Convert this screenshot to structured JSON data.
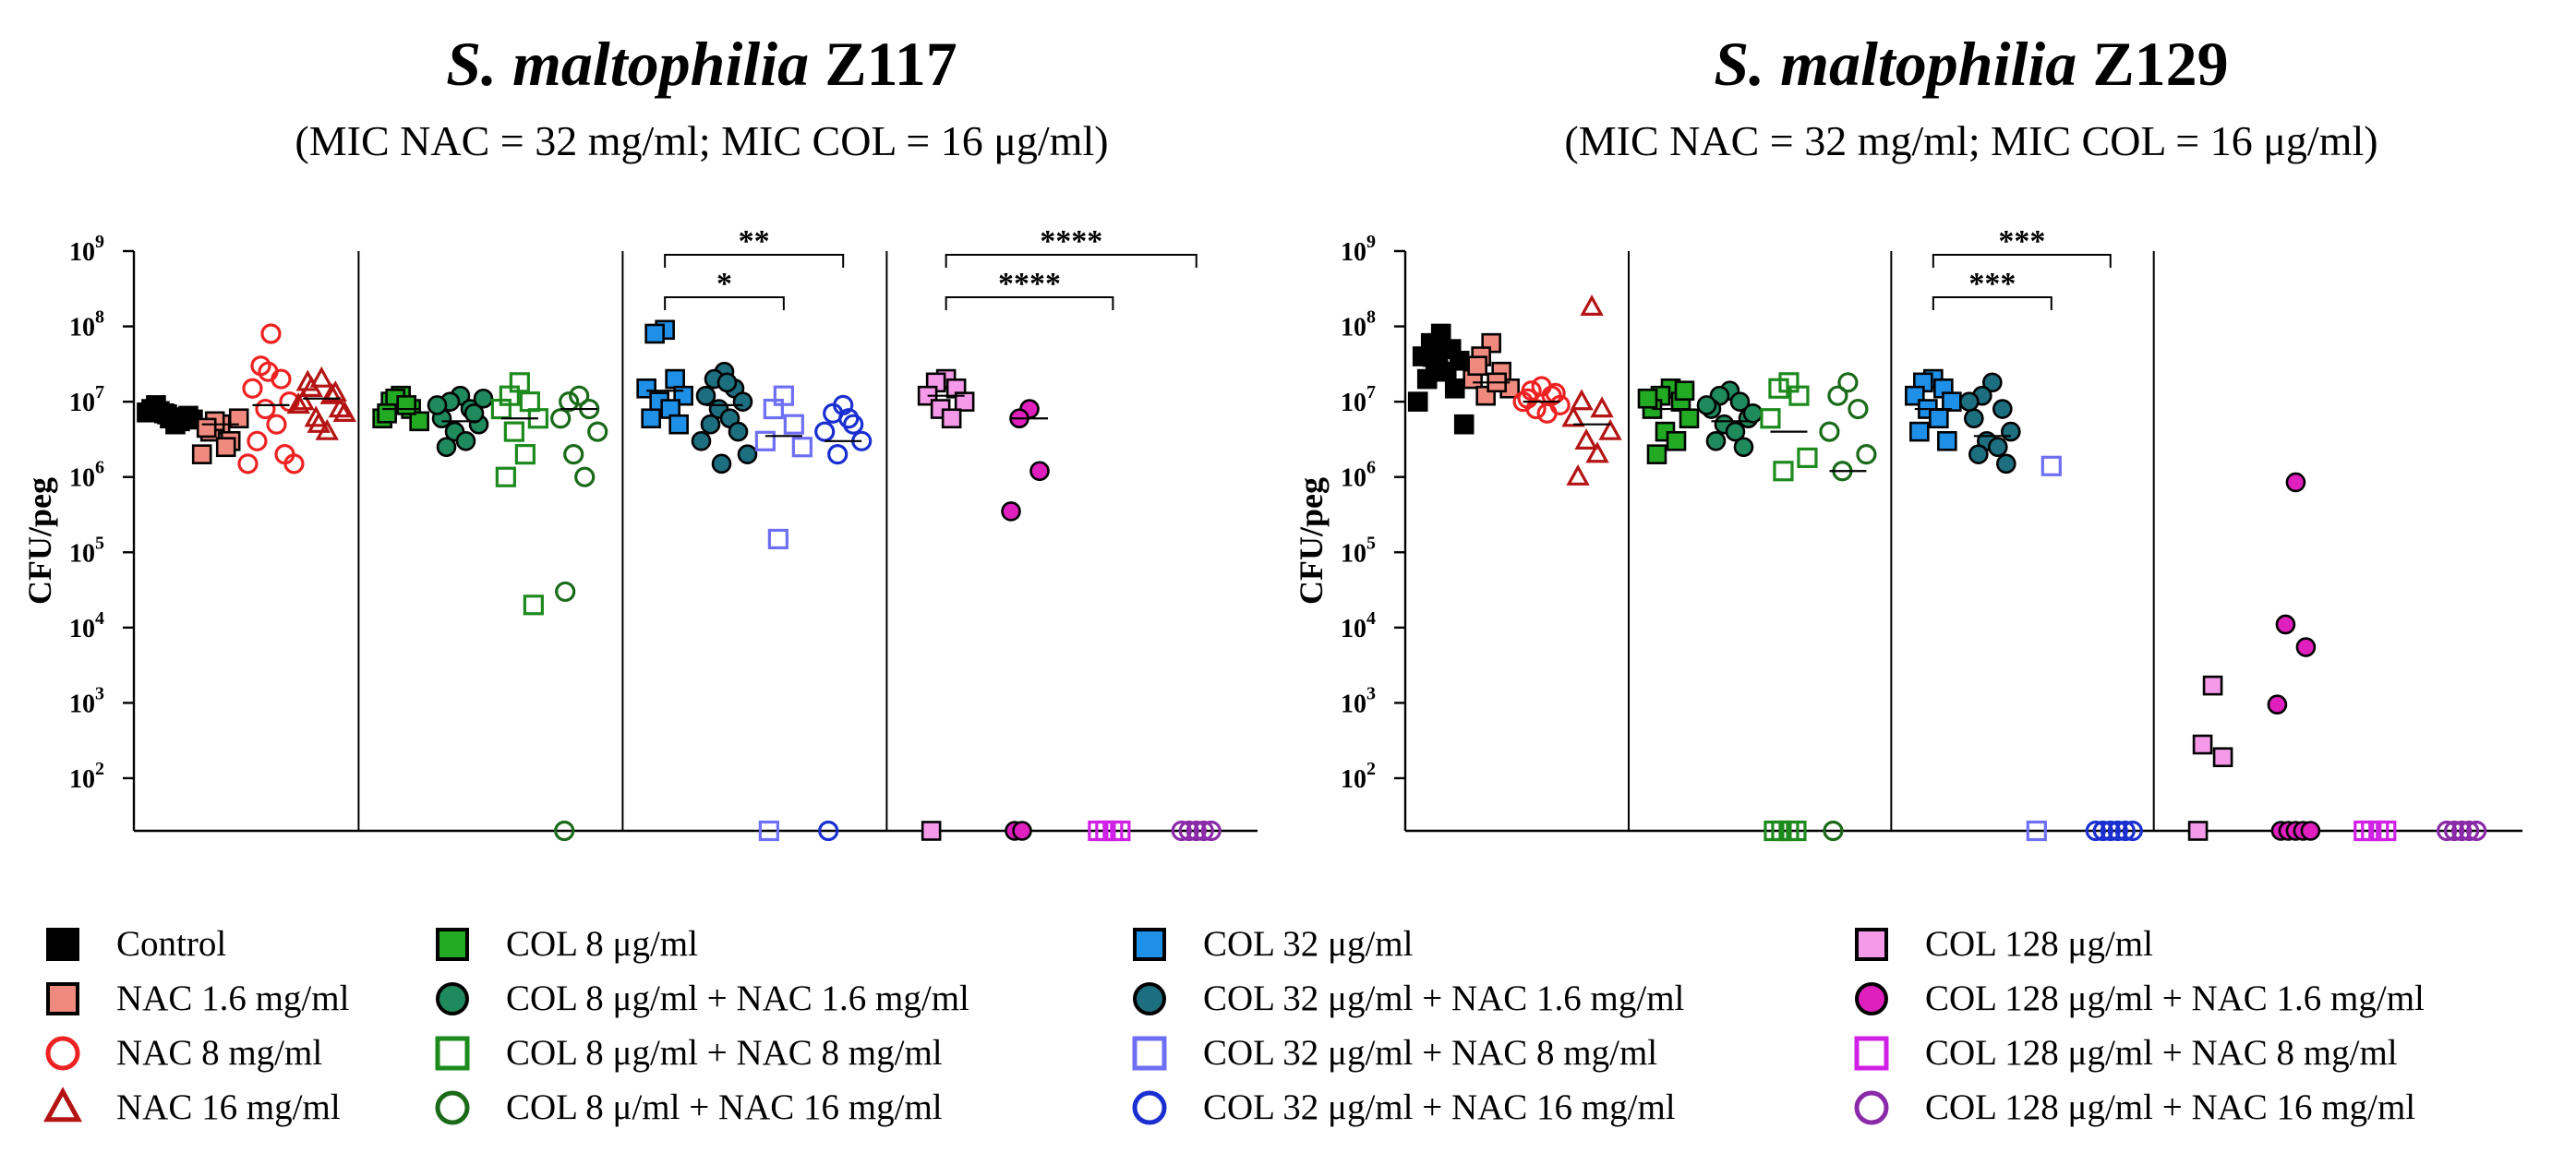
{
  "chart_data": [
    {
      "type": "scatter",
      "title_italic": "S. maltophilia",
      "title_bold": "Z117",
      "subtitle": "(MIC NAC = 32 mg/ml; MIC COL = 16 μg/ml)",
      "ylabel": "CFU/peg",
      "yscale": "log",
      "ylim": [
        20,
        1000000000
      ],
      "yticks": [
        {
          "exp": 2,
          "text": "10",
          "sup": "2"
        },
        {
          "exp": 3,
          "text": "10",
          "sup": "3"
        },
        {
          "exp": 4,
          "text": "10",
          "sup": "4"
        },
        {
          "exp": 5,
          "text": "10",
          "sup": "5"
        },
        {
          "exp": 6,
          "text": "10",
          "sup": "6"
        },
        {
          "exp": 7,
          "text": "10",
          "sup": "7"
        },
        {
          "exp": 8,
          "text": "10",
          "sup": "8"
        },
        {
          "exp": 9,
          "text": "10",
          "sup": "9"
        }
      ],
      "group_separators_after": [
        3,
        7,
        11
      ],
      "series": [
        {
          "name": "Control",
          "values": [
            6000000,
            7500000,
            5500000,
            8000000,
            6500000,
            7000000,
            5000000,
            9000000,
            6200000,
            7200000,
            5800000,
            6800000
          ],
          "median": 6500000
        },
        {
          "name": "NAC 1.6 mg/ml",
          "values": [
            5000000,
            4000000,
            3000000,
            2000000,
            6000000,
            5500000,
            2500000,
            4500000
          ],
          "median": 5000000
        },
        {
          "name": "NAC 8 mg/ml",
          "values": [
            80000000,
            30000000,
            20000000,
            15000000,
            10000000,
            8000000,
            5000000,
            3000000,
            2000000,
            1500000,
            1500000,
            25000000
          ],
          "median": 9000000
        },
        {
          "name": "NAC 16 mg/ml",
          "values": [
            20000000,
            15000000,
            12000000,
            10000000,
            8000000,
            6000000,
            4000000,
            18000000,
            13000000,
            9000000,
            7000000,
            5000000
          ],
          "median": 11000000
        },
        {
          "name": "COL 8 μg/ml",
          "values": [
            12000000,
            10000000,
            8000000,
            6000000,
            5500000,
            11000000,
            9000000,
            7000000
          ],
          "median": 8000000
        },
        {
          "name": "COL 8 μg/ml + NAC 1.6 mg/ml",
          "values": [
            12000000,
            10000000,
            8000000,
            6000000,
            5000000,
            4000000,
            3000000,
            2500000,
            7000000,
            9000000,
            11000000
          ],
          "median": 5500000
        },
        {
          "name": "COL 8 μg/ml + NAC 8 mg/ml",
          "values": [
            18000000,
            12000000,
            10000000,
            8000000,
            6000000,
            4000000,
            2000000,
            1000000,
            20000
          ],
          "median": 6000000
        },
        {
          "name": "COL 8 μ/ml + NAC 16 mg/ml",
          "values": [
            12000000,
            10000000,
            8000000,
            6000000,
            4000000,
            2000000,
            1000000,
            30000,
            20
          ],
          "median": 8000000
        },
        {
          "name": "COL 32 μg/ml",
          "values": [
            90000000,
            80000000,
            20000000,
            15000000,
            12000000,
            10000000,
            8000000,
            6000000,
            5000000
          ],
          "median": 14000000
        },
        {
          "name": "COL 32 μg/ml + NAC 1.6 mg/ml",
          "values": [
            25000000,
            20000000,
            15000000,
            12000000,
            10000000,
            8000000,
            6000000,
            5000000,
            4000000,
            3000000,
            2000000,
            1500000,
            18000000
          ],
          "median": 9000000
        },
        {
          "name": "COL 32 μg/ml + NAC 8 mg/ml",
          "values": [
            12000000,
            8000000,
            5000000,
            3000000,
            2500000,
            150000,
            20
          ],
          "median": 3500000
        },
        {
          "name": "COL 32 μg/ml + NAC 16 mg/ml",
          "values": [
            9000000,
            7000000,
            5000000,
            4000000,
            3000000,
            2000000,
            6000000,
            20
          ],
          "median": 3000000
        },
        {
          "name": "COL 128 μg/ml",
          "values": [
            20000000,
            18000000,
            15000000,
            12000000,
            10000000,
            8000000,
            6000000,
            20
          ],
          "median": 12000000
        },
        {
          "name": "COL 128 μg/ml + NAC 1.6 mg/ml",
          "values": [
            8000000,
            6000000,
            1200000,
            350000,
            20,
            20
          ],
          "median": 6000000
        },
        {
          "name": "COL 128 μg/ml + NAC 8 mg/ml",
          "values": [
            20,
            20,
            20,
            20
          ],
          "median": null
        },
        {
          "name": "COL 128 μg/ml + NAC 16 mg/ml",
          "values": [
            20,
            20,
            20,
            20,
            20
          ],
          "median": null
        }
      ],
      "significance": [
        {
          "from": 8,
          "to": 10,
          "label": "*",
          "level": 1
        },
        {
          "from": 8,
          "to": 11,
          "label": "**",
          "level": 2
        },
        {
          "from": 12,
          "to": 14,
          "label": "****",
          "level": 1
        },
        {
          "from": 12,
          "to": 15,
          "label": "****",
          "level": 2
        }
      ]
    },
    {
      "type": "scatter",
      "title_italic": "S. maltophilia",
      "title_bold": "Z129",
      "subtitle": "(MIC NAC = 32 mg/ml; MIC COL = 16 μg/ml)",
      "ylabel": "CFU/peg",
      "yscale": "log",
      "ylim": [
        20,
        1000000000
      ],
      "yticks": [
        {
          "exp": 2,
          "text": "10",
          "sup": "2"
        },
        {
          "exp": 3,
          "text": "10",
          "sup": "3"
        },
        {
          "exp": 4,
          "text": "10",
          "sup": "4"
        },
        {
          "exp": 5,
          "text": "10",
          "sup": "5"
        },
        {
          "exp": 6,
          "text": "10",
          "sup": "6"
        },
        {
          "exp": 7,
          "text": "10",
          "sup": "7"
        },
        {
          "exp": 8,
          "text": "10",
          "sup": "8"
        },
        {
          "exp": 9,
          "text": "10",
          "sup": "9"
        }
      ],
      "group_separators_after": [
        3,
        7,
        11
      ],
      "series": [
        {
          "name": "Control",
          "values": [
            80000000,
            60000000,
            50000000,
            40000000,
            35000000,
            30000000,
            25000000,
            20000000,
            15000000,
            10000000,
            5000000,
            45000000
          ],
          "median": 30000000
        },
        {
          "name": "NAC 1.6 mg/ml",
          "values": [
            60000000,
            40000000,
            25000000,
            20000000,
            15000000,
            12000000,
            18000000,
            30000000
          ],
          "median": 18000000
        },
        {
          "name": "NAC 8 mg/ml",
          "values": [
            16000000,
            14000000,
            12000000,
            10000000,
            9000000,
            8000000,
            7000000,
            11000000,
            13000000
          ],
          "median": 10000000
        },
        {
          "name": "NAC 16 mg/ml",
          "values": [
            180000000,
            10000000,
            8000000,
            6000000,
            4000000,
            3000000,
            2000000,
            1000000
          ],
          "median": 5000000
        },
        {
          "name": "COL 8 μg/ml",
          "values": [
            15000000,
            12000000,
            10000000,
            8000000,
            6000000,
            4000000,
            3000000,
            2000000,
            14000000,
            11000000
          ],
          "median": 8000000
        },
        {
          "name": "COL 8 μg/ml + NAC 1.6 mg/ml",
          "values": [
            14000000,
            12000000,
            10000000,
            8000000,
            6000000,
            5000000,
            4000000,
            3000000,
            2500000,
            9000000,
            7000000
          ],
          "median": 5500000
        },
        {
          "name": "COL 8 μg/ml + NAC 8 mg/ml",
          "values": [
            18000000,
            15000000,
            12000000,
            6000000,
            1800000,
            1200000,
            20,
            20,
            20,
            20
          ],
          "median": 4000000
        },
        {
          "name": "COL 8 μ/ml + NAC 16 mg/ml",
          "values": [
            18000000,
            12000000,
            8000000,
            4000000,
            2000000,
            1200000,
            20
          ],
          "median": 1200000
        },
        {
          "name": "COL 32 μg/ml",
          "values": [
            20000000,
            18000000,
            15000000,
            12000000,
            10000000,
            8000000,
            6000000,
            4000000,
            3000000
          ],
          "median": 8000000
        },
        {
          "name": "COL 32 μg/ml + NAC 1.6 mg/ml",
          "values": [
            18000000,
            12000000,
            8000000,
            6000000,
            4000000,
            3000000,
            2500000,
            2000000,
            1500000,
            10000000
          ],
          "median": 3500000
        },
        {
          "name": "COL 32 μg/ml + NAC 8 mg/ml",
          "values": [
            1400000,
            20
          ],
          "median": null
        },
        {
          "name": "COL 32 μg/ml + NAC 16 mg/ml",
          "values": [
            20,
            20,
            20,
            20,
            20,
            20
          ],
          "median": null
        },
        {
          "name": "COL 128 μg/ml",
          "values": [
            1700,
            280,
            190,
            20
          ],
          "median": null
        },
        {
          "name": "COL 128 μg/ml + NAC 1.6 mg/ml",
          "values": [
            850000,
            11000,
            5500,
            950,
            20,
            20,
            20,
            20,
            20
          ],
          "median": null
        },
        {
          "name": "COL 128 μg/ml + NAC 8 mg/ml",
          "values": [
            20,
            20,
            20,
            20
          ],
          "median": null
        },
        {
          "name": "COL 128 μg/ml + NAC 16 mg/ml",
          "values": [
            20,
            20,
            20,
            20,
            20
          ],
          "median": null
        }
      ],
      "significance": [
        {
          "from": 8,
          "to": 10,
          "label": "***",
          "level": 1
        },
        {
          "from": 8,
          "to": 11,
          "label": "***",
          "level": 2
        }
      ]
    }
  ],
  "legend": {
    "items": [
      {
        "label": "Control",
        "shape": "square",
        "fill": "#000000",
        "stroke": "#000000"
      },
      {
        "label": "NAC 1.6 mg/ml",
        "shape": "square",
        "fill": "#f08a7e",
        "stroke": "#000000"
      },
      {
        "label": "NAC 8 mg/ml",
        "shape": "circle",
        "fill": "none",
        "stroke": "#ee2222"
      },
      {
        "label": "NAC 16 mg/ml",
        "shape": "triangle",
        "fill": "none",
        "stroke": "#b51414"
      },
      {
        "label": "COL 8 μg/ml",
        "shape": "square",
        "fill": "#22aa22",
        "stroke": "#000000"
      },
      {
        "label": "COL 8 μg/ml + NAC 1.6 mg/ml",
        "shape": "circle",
        "fill": "#1f8a5c",
        "stroke": "#000000"
      },
      {
        "label": "COL 8 μg/ml + NAC 8 mg/ml",
        "shape": "square",
        "fill": "none",
        "stroke": "#1d8a1d"
      },
      {
        "label": "COL 8 μ/ml + NAC 16 mg/ml",
        "shape": "circle",
        "fill": "none",
        "stroke": "#1a6a1a"
      },
      {
        "label": "COL 32 μg/ml",
        "shape": "square",
        "fill": "#1e90e8",
        "stroke": "#000000"
      },
      {
        "label": "COL 32 μg/ml + NAC 1.6 mg/ml",
        "shape": "circle",
        "fill": "#1d6f80",
        "stroke": "#000000"
      },
      {
        "label": "COL 32 μg/ml + NAC 8 mg/ml",
        "shape": "square",
        "fill": "none",
        "stroke": "#6f6ff5"
      },
      {
        "label": "COL 32 μg/ml + NAC 16 mg/ml",
        "shape": "circle",
        "fill": "none",
        "stroke": "#1a2fd0"
      },
      {
        "label": "COL 128 μg/ml",
        "shape": "square",
        "fill": "#f49ae8",
        "stroke": "#000000"
      },
      {
        "label": "COL 128 μg/ml + NAC 1.6 mg/ml",
        "shape": "circle",
        "fill": "#e01fbf",
        "stroke": "#000000"
      },
      {
        "label": "COL 128 μg/ml + NAC 8 mg/ml",
        "shape": "square",
        "fill": "none",
        "stroke": "#d020e6"
      },
      {
        "label": "COL 128 μg/ml + NAC 16 mg/ml",
        "shape": "circle",
        "fill": "none",
        "stroke": "#8a2aa8"
      }
    ]
  }
}
